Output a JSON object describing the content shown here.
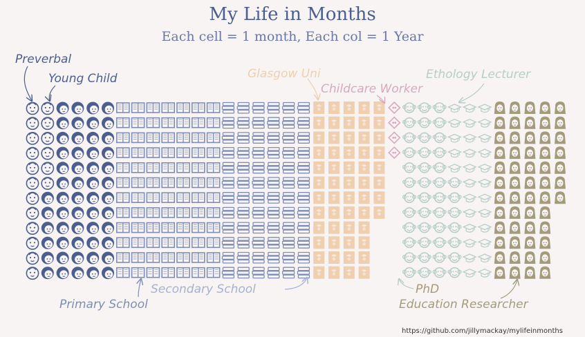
{
  "chart_data": {
    "type": "waffle",
    "title": "My Life in Months",
    "subtitle": "Each cell = 1 month, Each col = 1 Year",
    "rows_per_column": 12,
    "columns": [
      {
        "count": 12,
        "cat": "preverbal"
      },
      {
        "count": 6,
        "cat": "preverbal",
        "rest": "young_child"
      },
      {
        "count": 12,
        "cat": "young_child"
      },
      {
        "count": 12,
        "cat": "young_child"
      },
      {
        "count": 12,
        "cat": "young_child"
      },
      {
        "count": 12,
        "cat": "young_child"
      },
      {
        "count": 12,
        "cat": "primary_school"
      },
      {
        "count": 12,
        "cat": "primary_school"
      },
      {
        "count": 12,
        "cat": "primary_school"
      },
      {
        "count": 12,
        "cat": "primary_school"
      },
      {
        "count": 12,
        "cat": "primary_school"
      },
      {
        "count": 12,
        "cat": "primary_school"
      },
      {
        "count": 12,
        "cat": "primary_school"
      },
      {
        "count": 12,
        "cat": "secondary_school"
      },
      {
        "count": 12,
        "cat": "secondary_school"
      },
      {
        "count": 12,
        "cat": "secondary_school"
      },
      {
        "count": 12,
        "cat": "secondary_school"
      },
      {
        "count": 12,
        "cat": "secondary_school"
      },
      {
        "count": 12,
        "cat": "secondary_school"
      },
      {
        "count": 12,
        "cat": "glasgow_uni"
      },
      {
        "count": 12,
        "cat": "glasgow_uni"
      },
      {
        "count": 12,
        "cat": "glasgow_uni"
      },
      {
        "count": 12,
        "cat": "glasgow_uni"
      },
      {
        "count": 8,
        "cat": "glasgow_uni"
      },
      {
        "count": 4,
        "cat": "childcare_worker"
      },
      {
        "count": 12,
        "cat": "phd"
      },
      {
        "count": 12,
        "cat": "phd"
      },
      {
        "count": 12,
        "cat": "phd"
      },
      {
        "count": 5,
        "cat": "ethology_lecturer",
        "rest": "phd"
      },
      {
        "count": 12,
        "cat": "ethology_lecturer"
      },
      {
        "count": 12,
        "cat": "ethology_lecturer"
      },
      {
        "count": 12,
        "cat": "education_researcher"
      },
      {
        "count": 12,
        "cat": "education_researcher"
      },
      {
        "count": 12,
        "cat": "education_researcher"
      },
      {
        "count": 12,
        "cat": "education_researcher"
      },
      {
        "count": 7,
        "cat": "education_researcher"
      }
    ],
    "categories": [
      {
        "key": "preverbal",
        "label": "Preverbal",
        "icon": "baby-icon",
        "color": "#4c5e8e"
      },
      {
        "key": "young_child",
        "label": "Young Child",
        "icon": "child-icon",
        "color": "#4c5e8e"
      },
      {
        "key": "primary_school",
        "label": "Primary School",
        "icon": "open-book-icon",
        "color": "#7d8db5"
      },
      {
        "key": "secondary_school",
        "label": "Secondary School",
        "icon": "books-stack-icon",
        "color": "#7d8db5"
      },
      {
        "key": "glasgow_uni",
        "label": "Glasgow Uni",
        "icon": "graduate-icon",
        "color": "#efcfad"
      },
      {
        "key": "childcare_worker",
        "label": "Childcare Worker",
        "icon": "childcare-icon",
        "color": "#d8a8bf"
      },
      {
        "key": "phd",
        "label": "PhD",
        "icon": "monkey-icon",
        "color": "#b8cdc7"
      },
      {
        "key": "ethology_lecturer",
        "label": "Ethology Lecturer",
        "icon": "mortarboard-icon",
        "color": "#b8cdc7"
      },
      {
        "key": "education_researcher",
        "label": "Education Researcher",
        "icon": "woman-icon",
        "color": "#a39b7a"
      }
    ]
  },
  "annotations": {
    "preverbal": "Preverbal",
    "young_child": "Young Child",
    "glasgow_uni": "Glasgow Uni",
    "childcare_worker": "Childcare Worker",
    "ethology_lecturer": "Ethology Lecturer",
    "secondary_school": "Secondary School",
    "phd": "PhD",
    "primary_school": "Primary School",
    "education_researcher": "Education Researcher"
  },
  "colors": {
    "title": "#4c5e8e",
    "background": "#f8f4f4"
  },
  "credit": "https://github.com/jillymackay/mylifeinmonths"
}
